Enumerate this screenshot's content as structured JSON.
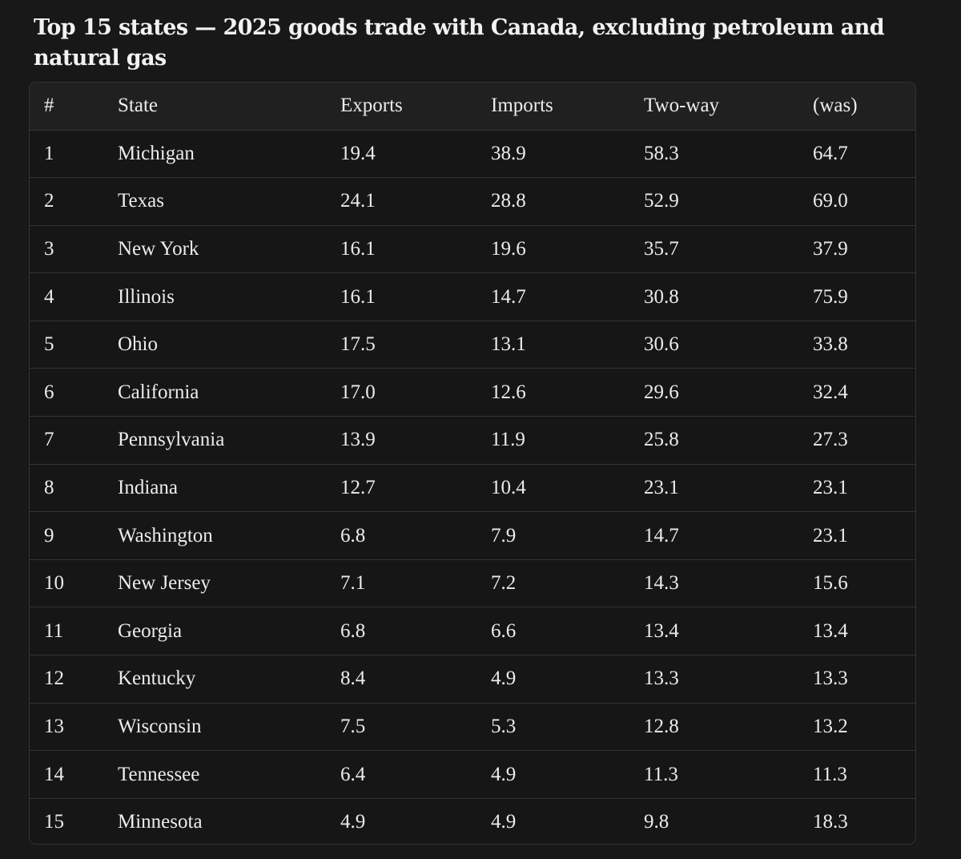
{
  "title": "Top 15 states — 2025 goods trade with Canada, excluding petroleum and natural gas",
  "columns": [
    "#",
    "State",
    "Exports",
    "Imports",
    "Two-way",
    "(was)"
  ],
  "rows": [
    [
      "1",
      "Michigan",
      "19.4",
      "38.9",
      "58.3",
      "64.7"
    ],
    [
      "2",
      "Texas",
      "24.1",
      "28.8",
      "52.9",
      "69.0"
    ],
    [
      "3",
      "New York",
      "16.1",
      "19.6",
      "35.7",
      "37.9"
    ],
    [
      "4",
      "Illinois",
      "16.1",
      "14.7",
      "30.8",
      "75.9"
    ],
    [
      "5",
      "Ohio",
      "17.5",
      "13.1",
      "30.6",
      "33.8"
    ],
    [
      "6",
      "California",
      "17.0",
      "12.6",
      "29.6",
      "32.4"
    ],
    [
      "7",
      "Pennsylvania",
      "13.9",
      "11.9",
      "25.8",
      "27.3"
    ],
    [
      "8",
      "Indiana",
      "12.7",
      "10.4",
      "23.1",
      "23.1"
    ],
    [
      "9",
      "Washington",
      "6.8",
      "7.9",
      "14.7",
      "23.1"
    ],
    [
      "10",
      "New Jersey",
      "7.1",
      "7.2",
      "14.3",
      "15.6"
    ],
    [
      "11",
      "Georgia",
      "6.8",
      "6.6",
      "13.4",
      "13.4"
    ],
    [
      "12",
      "Kentucky",
      "8.4",
      "4.9",
      "13.3",
      "13.3"
    ],
    [
      "13",
      "Wisconsin",
      "7.5",
      "5.3",
      "12.8",
      "13.2"
    ],
    [
      "14",
      "Tennessee",
      "6.4",
      "4.9",
      "11.3",
      "11.3"
    ],
    [
      "15",
      "Minnesota",
      "4.9",
      "4.9",
      "9.8",
      "18.3"
    ]
  ],
  "colors": {
    "background": "#181818",
    "header_background": "#202020",
    "border": "#333333",
    "text": "#ececec"
  }
}
